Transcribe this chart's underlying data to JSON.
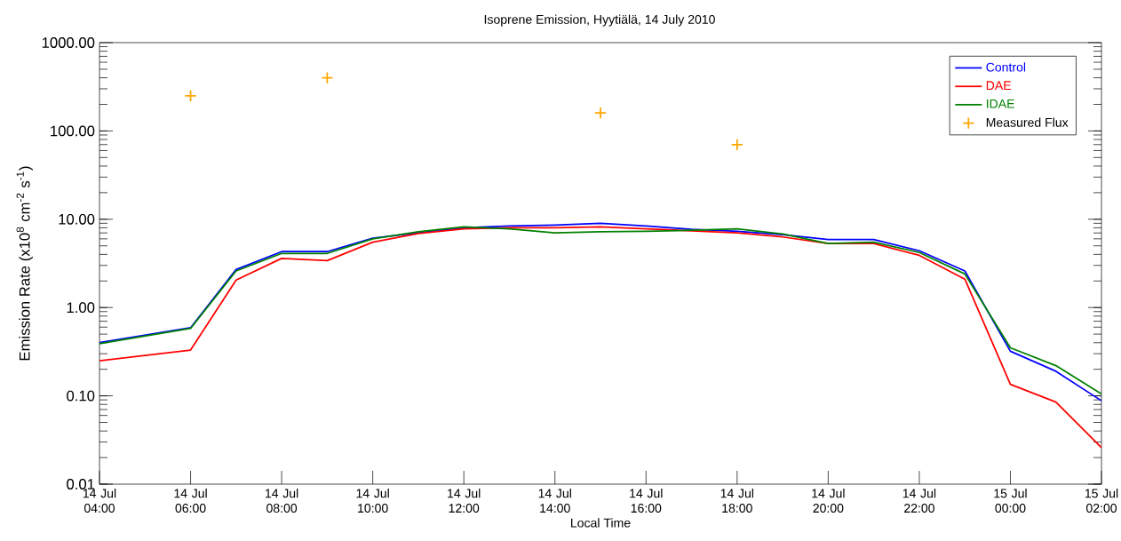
{
  "chart_data": {
    "type": "line",
    "title": "Isoprene Emission, Hyytiälä, 14 July 2010",
    "xlabel": "Local Time",
    "ylabel": "Emission Rate (x10$^{8}$ cm$^{-2}$ s$^{-1}$)",
    "x": [
      "2010-07-14T04:00",
      "2010-07-14T06:00",
      "2010-07-14T07:00",
      "2010-07-14T08:00",
      "2010-07-14T09:00",
      "2010-07-14T10:00",
      "2010-07-14T11:00",
      "2010-07-14T12:00",
      "2010-07-14T13:00",
      "2010-07-14T14:00",
      "2010-07-14T15:00",
      "2010-07-14T16:00",
      "2010-07-14T17:00",
      "2010-07-14T18:00",
      "2010-07-14T19:00",
      "2010-07-14T20:00",
      "2010-07-14T21:00",
      "2010-07-14T22:00",
      "2010-07-14T23:00",
      "2010-07-15T00:00",
      "2010-07-15T01:00",
      "2010-07-15T02:00"
    ],
    "xlim": [
      "2010-07-14T04:00",
      "2010-07-15T02:00"
    ],
    "xticks": [
      {
        "value": "2010-07-14T04:00",
        "label": "14 Jul 04:00"
      },
      {
        "value": "2010-07-14T06:00",
        "label": "14 Jul 06:00"
      },
      {
        "value": "2010-07-14T08:00",
        "label": "14 Jul 08:00"
      },
      {
        "value": "2010-07-14T10:00",
        "label": "14 Jul 10:00"
      },
      {
        "value": "2010-07-14T12:00",
        "label": "14 Jul 12:00"
      },
      {
        "value": "2010-07-14T14:00",
        "label": "14 Jul 14:00"
      },
      {
        "value": "2010-07-14T16:00",
        "label": "14 Jul 16:00"
      },
      {
        "value": "2010-07-14T18:00",
        "label": "14 Jul 18:00"
      },
      {
        "value": "2010-07-14T20:00",
        "label": "14 Jul 20:00"
      },
      {
        "value": "2010-07-14T22:00",
        "label": "14 Jul 22:00"
      },
      {
        "value": "2010-07-15T00:00",
        "label": "15 Jul 00:00"
      },
      {
        "value": "2010-07-15T02:00",
        "label": "15 Jul 02:00"
      }
    ],
    "ylim": [
      0.01,
      1000
    ],
    "log": "y",
    "yticks": [
      {
        "value": 0.01,
        "label": "0.01"
      },
      {
        "value": 0.1,
        "label": "0.10"
      },
      {
        "value": 1,
        "label": "1.00"
      },
      {
        "value": 10,
        "label": "10.00"
      },
      {
        "value": 100,
        "label": "100.00"
      },
      {
        "value": 1000,
        "label": "1000.00"
      }
    ],
    "legend": "top right",
    "series": [
      {
        "name": "Control",
        "color": "#0000ff",
        "values": [
          0.4,
          0.59,
          2.7,
          4.3,
          4.3,
          6.1,
          7.0,
          8.0,
          8.4,
          8.6,
          9.0,
          8.4,
          7.7,
          7.3,
          6.7,
          5.9,
          5.9,
          4.4,
          2.6,
          0.32,
          0.19,
          0.088
        ]
      },
      {
        "name": "DAE",
        "color": "#ff0000",
        "values": [
          0.25,
          0.33,
          2.05,
          3.6,
          3.4,
          5.5,
          6.9,
          7.8,
          8.0,
          8.0,
          8.2,
          7.8,
          7.4,
          7.0,
          6.3,
          5.3,
          5.3,
          3.9,
          2.1,
          0.135,
          0.085,
          0.026
        ]
      },
      {
        "name": "IDAE",
        "color": "#008000",
        "values": [
          0.39,
          0.58,
          2.6,
          4.1,
          4.1,
          6.0,
          7.2,
          8.2,
          7.8,
          7.0,
          7.2,
          7.3,
          7.5,
          7.8,
          6.8,
          5.3,
          5.5,
          4.2,
          2.4,
          0.35,
          0.22,
          0.105
        ]
      },
      {
        "name": "Measured Flux",
        "type": "scatter",
        "marker": "cross",
        "color": "#ffa500",
        "x": [
          "2010-07-14T06:00",
          "2010-07-14T09:00",
          "2010-07-14T15:00",
          "2010-07-14T18:00"
        ],
        "values": [
          250,
          400,
          160,
          70
        ]
      }
    ]
  }
}
